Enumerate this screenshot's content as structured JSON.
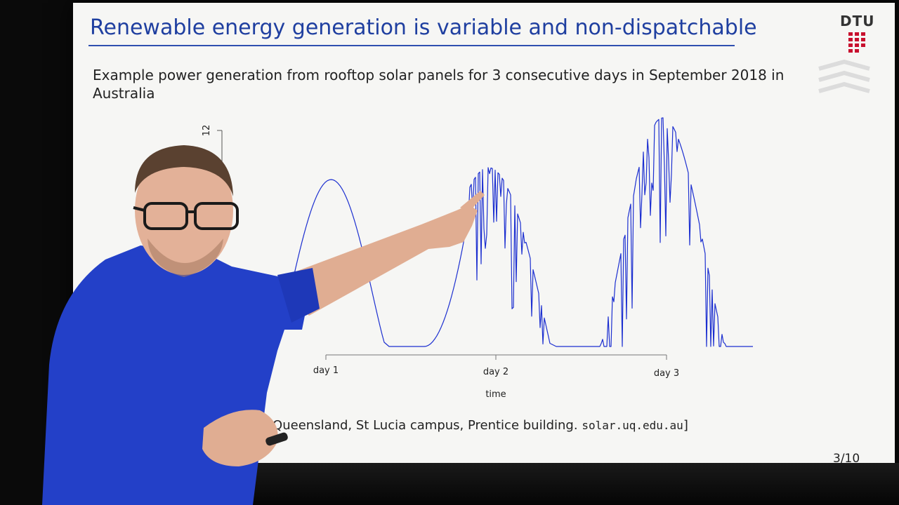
{
  "slide": {
    "title": "Renewable energy generation is variable and non-dispatchable",
    "subtitle": "Example power generation from rooftop solar panels for 3 consecutive days in September 2018 in Australia",
    "source_text": "f Queensland, St Lucia campus, Prentice building.",
    "source_url": "solar.uq.edu.au",
    "source_close": "]",
    "page_number": "3/10",
    "logo_text": "DTU"
  },
  "chart_data": {
    "type": "line",
    "xlabel": "time",
    "x_ticks": [
      "day 1",
      "day 2",
      "day 3"
    ],
    "y_ticks": [
      "12"
    ],
    "series_color": "#1c2fd0"
  },
  "colors": {
    "title_blue": "#1f3fa0",
    "shirt_blue": "#2340c8",
    "slide_background": "#f6f6f4",
    "dtu_red": "#c8102e"
  }
}
